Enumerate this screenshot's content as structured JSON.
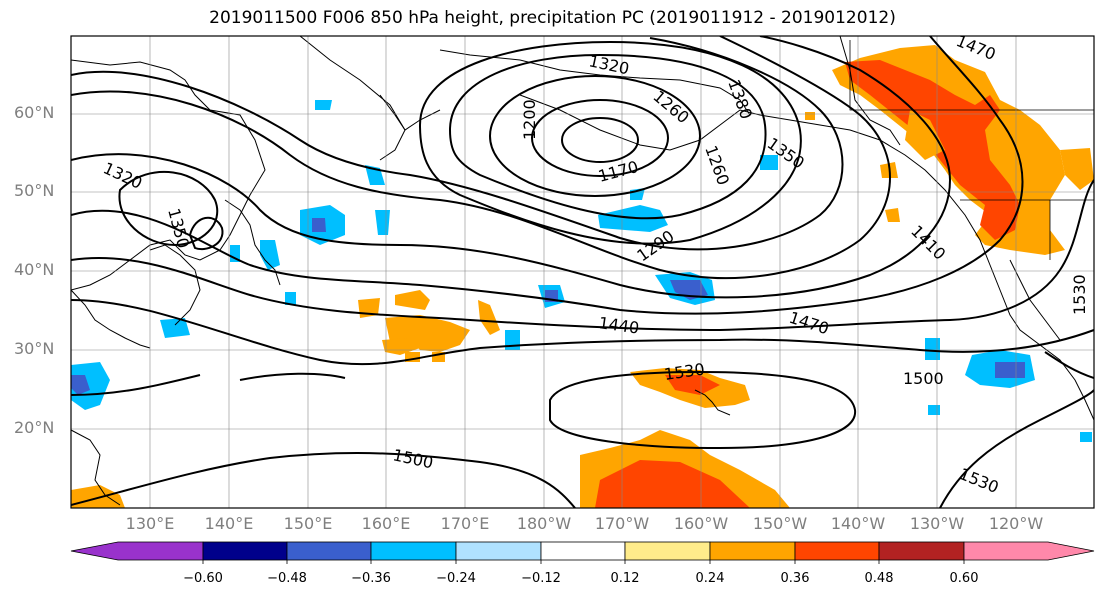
{
  "title": "2019011500 F006 850 hPa height, precipitation PC (2019011912 - 2019012012)",
  "map": {
    "lat_labels": [
      "60°N",
      "50°N",
      "40°N",
      "30°N",
      "20°N"
    ],
    "lon_labels": [
      "130°E",
      "140°E",
      "150°E",
      "160°E",
      "170°E",
      "180°W",
      "170°W",
      "160°W",
      "150°W",
      "140°W",
      "130°W",
      "120°W"
    ],
    "contour_labels": [
      "1320",
      "1200",
      "1380",
      "1260",
      "1170",
      "1260",
      "1350",
      "1320",
      "1350",
      "1290",
      "1410",
      "1440",
      "1470",
      "1530",
      "1500",
      "1530",
      "1500",
      "1470",
      "1530"
    ]
  },
  "colorbar": {
    "ticks": [
      "−0.60",
      "−0.48",
      "−0.36",
      "−0.24",
      "−0.12",
      "0.12",
      "0.24",
      "0.36",
      "0.48",
      "0.60"
    ],
    "colors": [
      "#9932cc",
      "#00008b",
      "#3a5fcd",
      "#00bfff",
      "#b0e2ff",
      "#ffffff",
      "#ffec8b",
      "#ffa500",
      "#ff4500",
      "#b22222",
      "#ff88aa"
    ]
  }
}
